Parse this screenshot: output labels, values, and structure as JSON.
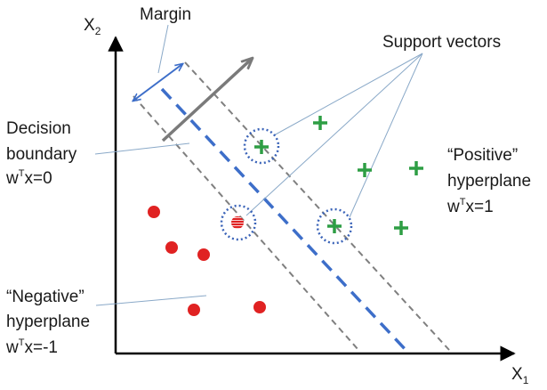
{
  "axes": {
    "x_label": "X",
    "x_subscript": "1",
    "y_label": "X",
    "y_subscript": "2"
  },
  "labels": {
    "margin": "Margin",
    "support_vectors": "Support vectors",
    "decision_line1": "Decision",
    "decision_line2": "boundary",
    "decision_eq_w": "w",
    "decision_eq_sup": "T",
    "decision_eq_rest": "x=0",
    "positive_line1": "“Positive”",
    "positive_line2": "hyperplane",
    "positive_eq_w": "w",
    "positive_eq_sup": "T",
    "positive_eq_rest": "x=1",
    "negative_line1": "“Negative”",
    "negative_line2": "hyperplane",
    "negative_eq_w": "w",
    "negative_eq_sup": "T",
    "negative_eq_rest": "x=-1"
  },
  "colors": {
    "positive_class": "#2e9e44",
    "negative_class": "#e02222",
    "decision_boundary": "#3d6ec9",
    "margin_lines": "#7f7f7f",
    "support_circle": "#3a63b8",
    "normal_arrow": "#7a7a7a",
    "leader_lines": "#8aa9c8"
  },
  "class_counts": {
    "positive_points": 6,
    "negative_points": 6,
    "support_vectors": 3
  }
}
